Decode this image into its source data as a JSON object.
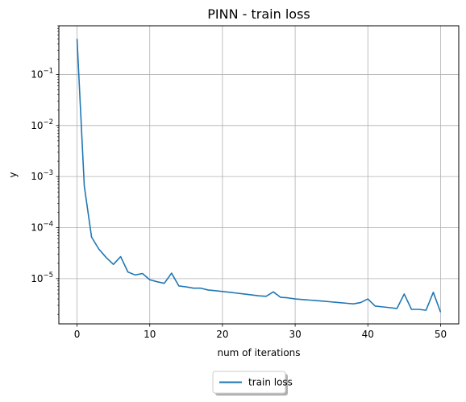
{
  "chart_data": {
    "type": "line",
    "title": "PINN - train loss",
    "xlabel": "num of iterations",
    "ylabel": "y",
    "yscale": "log",
    "xlim": [
      -2.5,
      52.5
    ],
    "ylim": [
      1.3e-06,
      0.9
    ],
    "grid": true,
    "legend_position": "bottom-center (below axes)",
    "xticks": [
      0,
      10,
      20,
      30,
      40,
      50
    ],
    "xtick_labels": [
      "0",
      "10",
      "20",
      "30",
      "40",
      "50"
    ],
    "yticks": [
      1e-05,
      0.0001,
      0.001,
      0.01,
      0.1
    ],
    "ytick_labels": [
      {
        "base": "10",
        "exp": "−5"
      },
      {
        "base": "10",
        "exp": "−4"
      },
      {
        "base": "10",
        "exp": "−3"
      },
      {
        "base": "10",
        "exp": "−2"
      },
      {
        "base": "10",
        "exp": "−1"
      }
    ],
    "series": [
      {
        "name": "train loss",
        "color": "#1f77b4",
        "x": [
          0,
          1,
          2,
          3,
          4,
          5,
          6,
          7,
          8,
          9,
          10,
          11,
          12,
          13,
          14,
          15,
          16,
          17,
          18,
          19,
          20,
          21,
          22,
          23,
          24,
          25,
          26,
          27,
          28,
          29,
          30,
          31,
          32,
          33,
          34,
          35,
          36,
          37,
          38,
          39,
          40,
          41,
          42,
          43,
          44,
          45,
          46,
          47,
          48,
          49,
          50
        ],
        "y": [
          0.5,
          0.00065,
          6.5e-05,
          3.8e-05,
          2.6e-05,
          1.9e-05,
          2.7e-05,
          1.35e-05,
          1.18e-05,
          1.26e-05,
          9.5e-06,
          8.7e-06,
          8.1e-06,
          1.28e-05,
          7.2e-06,
          6.9e-06,
          6.5e-06,
          6.5e-06,
          6e-06,
          5.8e-06,
          5.6e-06,
          5.4e-06,
          5.2e-06,
          5e-06,
          4.8e-06,
          4.6e-06,
          4.5e-06,
          5.5e-06,
          4.3e-06,
          4.2e-06,
          4e-06,
          3.9e-06,
          3.8e-06,
          3.7e-06,
          3.6e-06,
          3.5e-06,
          3.4e-06,
          3.3e-06,
          3.2e-06,
          3.4e-06,
          4e-06,
          2.9e-06,
          2.8e-06,
          2.7e-06,
          2.6e-06,
          5e-06,
          2.5e-06,
          2.5e-06,
          2.4e-06,
          5.4e-06,
          2.2e-06
        ]
      }
    ]
  }
}
